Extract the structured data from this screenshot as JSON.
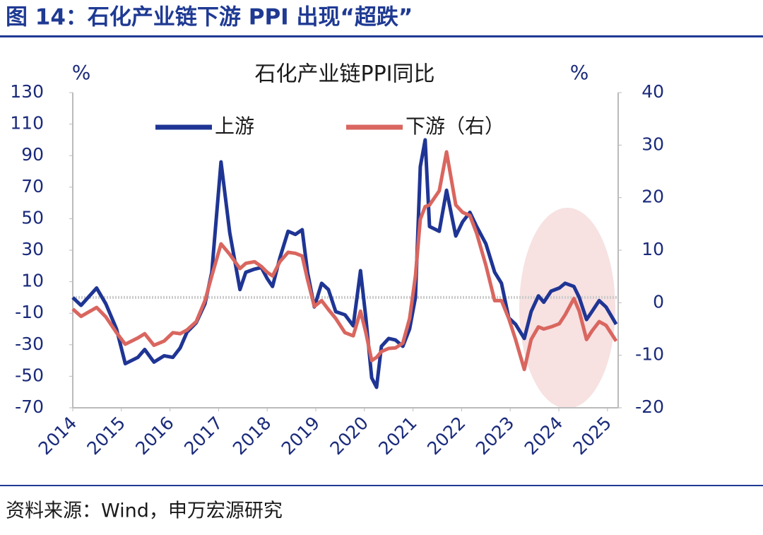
{
  "header": {
    "title": "图 14：石化产业链下游 PPI 出现“超跌”"
  },
  "chart_data": {
    "type": "line",
    "title": "石化产业链PPI同比",
    "y_label": "%",
    "y2_label": "%",
    "x": [
      2014.0,
      2014.17,
      2014.49,
      2014.68,
      2014.9,
      2015.08,
      2015.34,
      2015.48,
      2015.67,
      2015.88,
      2016.06,
      2016.21,
      2016.35,
      2016.54,
      2016.72,
      2016.86,
      2017.05,
      2017.23,
      2017.44,
      2017.56,
      2017.74,
      2017.88,
      2018.0,
      2018.11,
      2018.26,
      2018.43,
      2018.58,
      2018.72,
      2018.83,
      2018.97,
      2019.12,
      2019.26,
      2019.41,
      2019.6,
      2019.77,
      2019.92,
      2020.03,
      2020.15,
      2020.25,
      2020.35,
      2020.5,
      2020.64,
      2020.79,
      2020.93,
      2021.05,
      2021.15,
      2021.25,
      2021.34,
      2021.54,
      2021.69,
      2021.88,
      2022.02,
      2022.17,
      2022.31,
      2022.5,
      2022.68,
      2022.82,
      2022.97,
      2023.11,
      2023.29,
      2023.43,
      2023.58,
      2023.69,
      2023.84,
      2024.01,
      2024.13,
      2024.31,
      2024.42,
      2024.57,
      2024.68,
      2024.83,
      2024.97,
      2025.18
    ],
    "series": [
      {
        "name": "上游",
        "color": "#1f3594",
        "axis": "y",
        "values": [
          0,
          -5,
          6,
          -4,
          -20,
          -42,
          -38,
          -33,
          -41,
          -37,
          -38,
          -32,
          -22,
          -16,
          -4,
          16,
          86,
          41,
          5,
          16,
          18,
          19,
          12,
          7,
          25,
          42,
          40,
          43,
          16,
          -6,
          9,
          5,
          -9,
          -11,
          -18,
          17,
          -13,
          -51,
          -57,
          -31,
          -26,
          -27,
          -31,
          -20,
          0,
          83,
          100,
          45,
          42,
          68,
          39,
          48,
          54,
          45,
          34,
          16,
          9,
          -13,
          -17,
          -26,
          -9,
          1,
          -3,
          4,
          6,
          9,
          7,
          0,
          -14,
          -9,
          -2,
          -6,
          -17
        ]
      },
      {
        "name": "下游（右）",
        "color": "#d9665f",
        "axis": "y2",
        "values": [
          -1.2,
          -2.6,
          -0.9,
          -2.7,
          -5.7,
          -7.9,
          -6.7,
          -5.9,
          -8.1,
          -7.3,
          -5.7,
          -5.9,
          -5.2,
          -3.6,
          0.4,
          5.1,
          11.2,
          9.2,
          6.5,
          7.5,
          7.8,
          6.9,
          5.8,
          5.1,
          7.8,
          9.6,
          9.4,
          8.9,
          4.4,
          -0.7,
          0.4,
          -1.3,
          -3.0,
          -5.7,
          -6.3,
          -1.6,
          -5.7,
          -11.0,
          -10.4,
          -9.3,
          -8.7,
          -8.6,
          -7.7,
          -3.0,
          5.1,
          15.9,
          18.3,
          18.6,
          21.3,
          28.7,
          18.6,
          17.2,
          16.6,
          13.2,
          7.1,
          0.4,
          0.4,
          -3.0,
          -7.0,
          -12.7,
          -7.0,
          -4.6,
          -5.0,
          -4.6,
          -4.0,
          -2.3,
          0.8,
          -1.6,
          -7.0,
          -5.4,
          -3.6,
          -4.3,
          -7.3
        ]
      }
    ],
    "xlim": [
      2014,
      2025.25
    ],
    "xticks": [
      2014,
      2015,
      2016,
      2017,
      2018,
      2019,
      2020,
      2021,
      2022,
      2023,
      2024,
      2025
    ],
    "ylim": [
      -70,
      130
    ],
    "yticks": [
      -70,
      -50,
      -30,
      -10,
      10,
      30,
      50,
      70,
      90,
      110,
      130
    ],
    "y2lim": [
      -20,
      40
    ],
    "y2ticks": [
      -20,
      -10,
      0,
      10,
      20,
      30,
      40
    ]
  },
  "footer": {
    "source": "资料来源：Wind，申万宏源研究"
  }
}
